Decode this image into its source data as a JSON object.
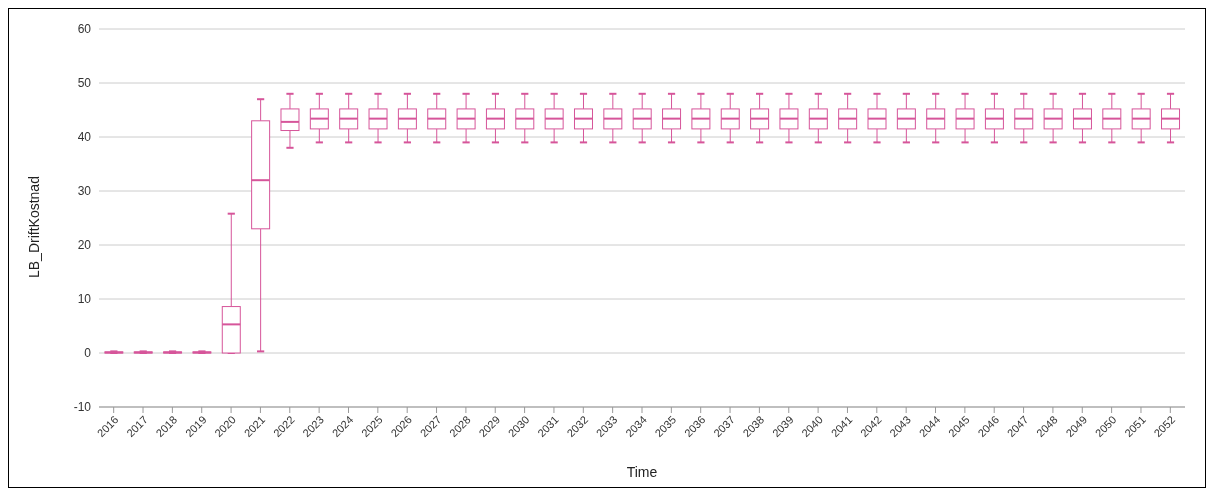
{
  "chart_data": {
    "type": "box",
    "xlabel": "Time",
    "ylabel": "LB_DriftKostnad",
    "color": "#d6559a",
    "grid": "y",
    "ylim": [
      -10,
      60
    ],
    "yticks": [
      -10,
      0,
      10,
      20,
      30,
      40,
      50,
      60
    ],
    "categories": [
      "2016",
      "2017",
      "2018",
      "2019",
      "2020",
      "2021",
      "2022",
      "2023",
      "2024",
      "2025",
      "2026",
      "2027",
      "2028",
      "2029",
      "2030",
      "2031",
      "2032",
      "2033",
      "2034",
      "2035",
      "2036",
      "2037",
      "2038",
      "2039",
      "2040",
      "2041",
      "2042",
      "2043",
      "2044",
      "2045",
      "2046",
      "2047",
      "2048",
      "2049",
      "2050",
      "2051",
      "2052"
    ],
    "boxes": [
      {
        "low": 0,
        "q1": 0,
        "median": 0.1,
        "q3": 0.2,
        "high": 0.3
      },
      {
        "low": 0,
        "q1": 0,
        "median": 0.1,
        "q3": 0.2,
        "high": 0.3
      },
      {
        "low": 0,
        "q1": 0,
        "median": 0.1,
        "q3": 0.2,
        "high": 0.3
      },
      {
        "low": 0,
        "q1": 0,
        "median": 0.1,
        "q3": 0.2,
        "high": 0.3
      },
      {
        "low": 0,
        "q1": 0,
        "median": 5.3,
        "q3": 8.6,
        "high": 25.8
      },
      {
        "low": 0.3,
        "q1": 23,
        "median": 32,
        "q3": 43,
        "high": 47
      },
      {
        "low": 38,
        "q1": 41.2,
        "median": 42.8,
        "q3": 45.2,
        "high": 48
      },
      {
        "low": 39,
        "q1": 41.5,
        "median": 43.4,
        "q3": 45.2,
        "high": 48
      },
      {
        "low": 39,
        "q1": 41.5,
        "median": 43.4,
        "q3": 45.2,
        "high": 48
      },
      {
        "low": 39,
        "q1": 41.5,
        "median": 43.4,
        "q3": 45.2,
        "high": 48
      },
      {
        "low": 39,
        "q1": 41.5,
        "median": 43.4,
        "q3": 45.2,
        "high": 48
      },
      {
        "low": 39,
        "q1": 41.5,
        "median": 43.4,
        "q3": 45.2,
        "high": 48
      },
      {
        "low": 39,
        "q1": 41.5,
        "median": 43.4,
        "q3": 45.2,
        "high": 48
      },
      {
        "low": 39,
        "q1": 41.5,
        "median": 43.4,
        "q3": 45.2,
        "high": 48
      },
      {
        "low": 39,
        "q1": 41.5,
        "median": 43.4,
        "q3": 45.2,
        "high": 48
      },
      {
        "low": 39,
        "q1": 41.5,
        "median": 43.4,
        "q3": 45.2,
        "high": 48
      },
      {
        "low": 39,
        "q1": 41.5,
        "median": 43.4,
        "q3": 45.2,
        "high": 48
      },
      {
        "low": 39,
        "q1": 41.5,
        "median": 43.4,
        "q3": 45.2,
        "high": 48
      },
      {
        "low": 39,
        "q1": 41.5,
        "median": 43.4,
        "q3": 45.2,
        "high": 48
      },
      {
        "low": 39,
        "q1": 41.5,
        "median": 43.4,
        "q3": 45.2,
        "high": 48
      },
      {
        "low": 39,
        "q1": 41.5,
        "median": 43.4,
        "q3": 45.2,
        "high": 48
      },
      {
        "low": 39,
        "q1": 41.5,
        "median": 43.4,
        "q3": 45.2,
        "high": 48
      },
      {
        "low": 39,
        "q1": 41.5,
        "median": 43.4,
        "q3": 45.2,
        "high": 48
      },
      {
        "low": 39,
        "q1": 41.5,
        "median": 43.4,
        "q3": 45.2,
        "high": 48
      },
      {
        "low": 39,
        "q1": 41.5,
        "median": 43.4,
        "q3": 45.2,
        "high": 48
      },
      {
        "low": 39,
        "q1": 41.5,
        "median": 43.4,
        "q3": 45.2,
        "high": 48
      },
      {
        "low": 39,
        "q1": 41.5,
        "median": 43.4,
        "q3": 45.2,
        "high": 48
      },
      {
        "low": 39,
        "q1": 41.5,
        "median": 43.4,
        "q3": 45.2,
        "high": 48
      },
      {
        "low": 39,
        "q1": 41.5,
        "median": 43.4,
        "q3": 45.2,
        "high": 48
      },
      {
        "low": 39,
        "q1": 41.5,
        "median": 43.4,
        "q3": 45.2,
        "high": 48
      },
      {
        "low": 39,
        "q1": 41.5,
        "median": 43.4,
        "q3": 45.2,
        "high": 48
      },
      {
        "low": 39,
        "q1": 41.5,
        "median": 43.4,
        "q3": 45.2,
        "high": 48
      },
      {
        "low": 39,
        "q1": 41.5,
        "median": 43.4,
        "q3": 45.2,
        "high": 48
      },
      {
        "low": 39,
        "q1": 41.5,
        "median": 43.4,
        "q3": 45.2,
        "high": 48
      },
      {
        "low": 39,
        "q1": 41.5,
        "median": 43.4,
        "q3": 45.2,
        "high": 48
      },
      {
        "low": 39,
        "q1": 41.5,
        "median": 43.4,
        "q3": 45.2,
        "high": 48
      },
      {
        "low": 39,
        "q1": 41.5,
        "median": 43.4,
        "q3": 45.2,
        "high": 48
      }
    ]
  }
}
